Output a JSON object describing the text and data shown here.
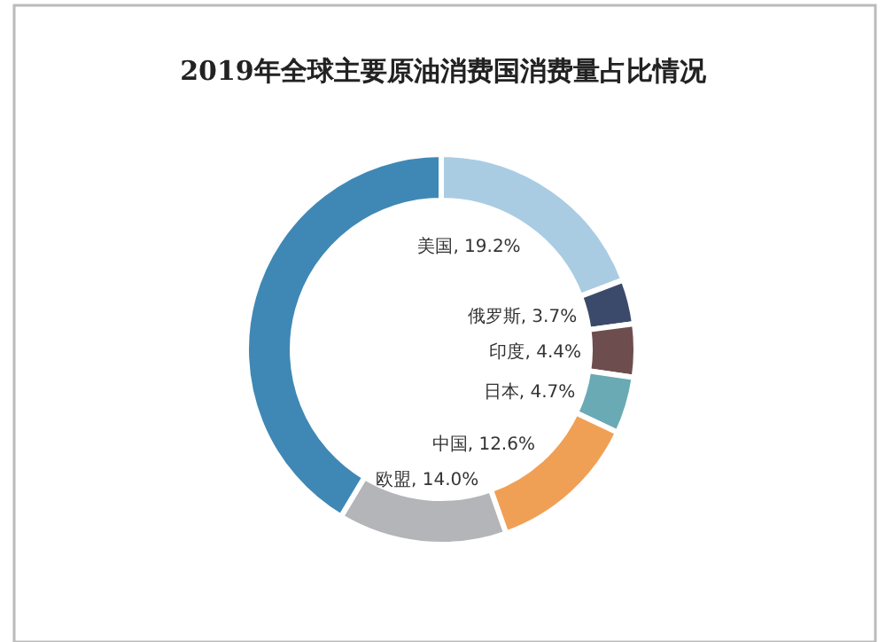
{
  "chart_data": {
    "type": "donut",
    "title": "2019年全球主要原油消费国消费量占比情况",
    "categories": [
      "美国",
      "俄罗斯",
      "印度",
      "日本",
      "中国",
      "欧盟",
      null
    ],
    "values": [
      19.2,
      3.7,
      4.4,
      4.7,
      12.6,
      14.0,
      41.4
    ],
    "colors": [
      "#a9cce3",
      "#3b4a6b",
      "#6e4d4f",
      "#6aaab5",
      "#f0a055",
      "#b3b5b8",
      "#3f88b5"
    ],
    "value_labels": [
      "19.2%",
      "3.7%",
      "4.4%",
      "4.7%",
      "12.6%",
      "14.0%",
      null
    ]
  }
}
